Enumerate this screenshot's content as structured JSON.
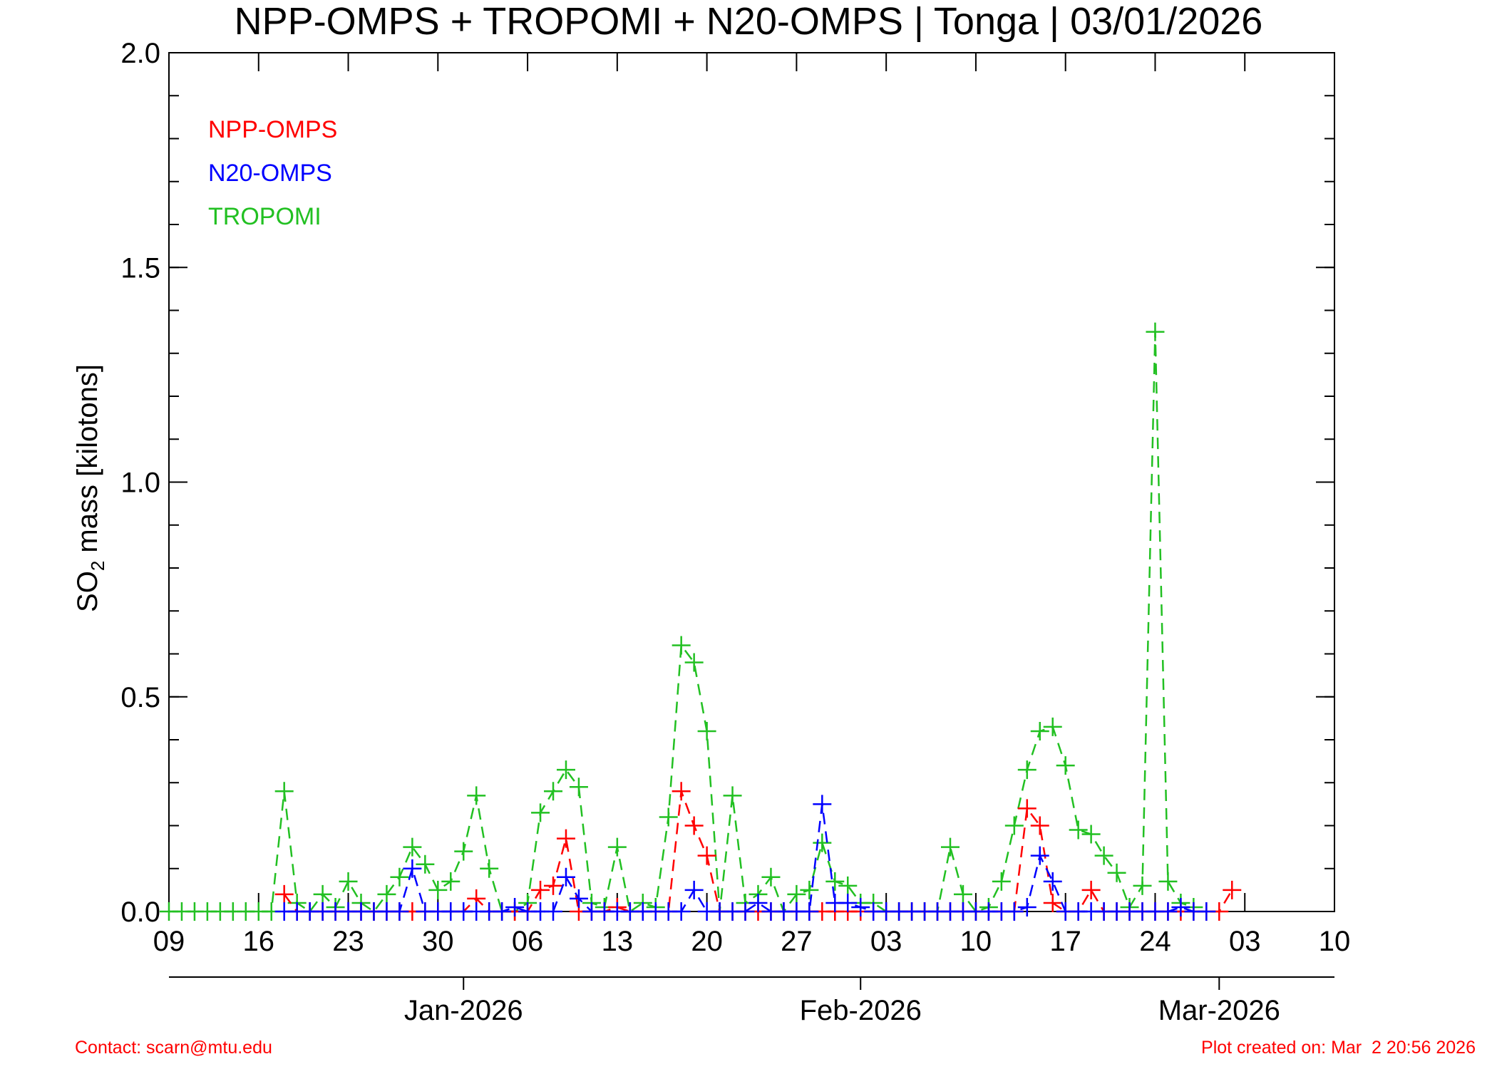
{
  "title": "NPP-OMPS + TROPOMI + N20-OMPS | Tonga | 03/01/2026",
  "footer": {
    "contact": "Contact: scarn@mtu.edu",
    "created": "Plot created on: Mar  2 20:56 2026"
  },
  "colors": {
    "npp": "#ff0000",
    "n20": "#0000ff",
    "tropomi": "#22c022",
    "axis": "#000000",
    "footer": "#ff0000"
  },
  "chart_data": {
    "type": "line",
    "title": "NPP-OMPS + TROPOMI + N20-OMPS | Tonga | 03/01/2026",
    "ylabel_main": "SO",
    "ylabel_sub": "2",
    "ylabel_rest": " mass [kilotons]",
    "ylim": [
      0,
      2.0
    ],
    "xlim": [
      "2025-12-09",
      "2026-03-10"
    ],
    "y_ticks": [
      "0.0",
      "0.5",
      "1.0",
      "1.5",
      "2.0"
    ],
    "y_tick_values": [
      0,
      0.5,
      1.0,
      1.5,
      2.0
    ],
    "y_minor_step": 0.1,
    "x_ticks": [
      {
        "date": "2025-12-09",
        "label": "09"
      },
      {
        "date": "2025-12-16",
        "label": "16"
      },
      {
        "date": "2025-12-23",
        "label": "23"
      },
      {
        "date": "2025-12-30",
        "label": "30"
      },
      {
        "date": "2026-01-06",
        "label": "06"
      },
      {
        "date": "2026-01-13",
        "label": "13"
      },
      {
        "date": "2026-01-20",
        "label": "20"
      },
      {
        "date": "2026-01-27",
        "label": "27"
      },
      {
        "date": "2026-02-03",
        "label": "03"
      },
      {
        "date": "2026-02-10",
        "label": "10"
      },
      {
        "date": "2026-02-17",
        "label": "17"
      },
      {
        "date": "2026-02-24",
        "label": "24"
      },
      {
        "date": "2026-03-03",
        "label": "03"
      },
      {
        "date": "2026-03-10",
        "label": "10"
      }
    ],
    "month_ticks": [
      {
        "date": "2026-01-01",
        "label": "Jan-2026"
      },
      {
        "date": "2026-02-01",
        "label": "Feb-2026"
      },
      {
        "date": "2026-03-01",
        "label": "Mar-2026"
      }
    ],
    "legend": {
      "position": "top-left",
      "entries": [
        "NPP-OMPS",
        "N20-OMPS",
        "TROPOMI"
      ]
    },
    "series": [
      {
        "name": "NPP-OMPS",
        "color": "#ff0000",
        "points": [
          [
            "2025-12-18",
            0.04
          ],
          [
            "2025-12-19",
            0.0
          ],
          [
            "2025-12-20",
            0.0
          ],
          [
            "2025-12-21",
            0.0
          ],
          [
            "2025-12-22",
            0.0
          ],
          [
            "2025-12-23",
            0.0
          ],
          [
            "2025-12-24",
            0.0
          ],
          [
            "2025-12-25",
            0.0
          ],
          [
            "2025-12-26",
            0.0
          ],
          [
            "2025-12-27",
            0.0
          ],
          [
            "2025-12-28",
            0.0
          ],
          [
            "2025-12-29",
            0.0
          ],
          [
            "2025-12-30",
            0.0
          ],
          [
            "2025-12-31",
            0.0
          ],
          [
            "2026-01-01",
            0.0
          ],
          [
            "2026-01-02",
            0.03
          ],
          [
            "2026-01-03",
            0.0
          ],
          [
            "2026-01-04",
            0.0
          ],
          [
            "2026-01-05",
            0.0
          ],
          [
            "2026-01-06",
            0.0
          ],
          [
            "2026-01-07",
            0.05
          ],
          [
            "2026-01-08",
            0.06
          ],
          [
            "2026-01-09",
            0.17
          ],
          [
            "2026-01-10",
            0.0
          ],
          [
            "2026-01-11",
            0.0
          ],
          [
            "2026-01-12",
            0.0
          ],
          [
            "2026-01-13",
            0.01
          ],
          [
            "2026-01-14",
            0.0
          ],
          [
            "2026-01-15",
            0.0
          ],
          [
            "2026-01-16",
            0.0
          ],
          [
            "2026-01-17",
            0.0
          ],
          [
            "2026-01-18",
            0.28
          ],
          [
            "2026-01-19",
            0.2
          ],
          [
            "2026-01-20",
            0.13
          ],
          [
            "2026-01-21",
            0.0
          ],
          [
            "2026-01-22",
            0.0
          ],
          [
            "2026-01-23",
            0.0
          ],
          [
            "2026-01-24",
            0.0
          ],
          [
            "2026-01-25",
            0.0
          ],
          [
            "2026-01-26",
            0.0
          ],
          [
            "2026-01-27",
            0.0
          ],
          [
            "2026-01-28",
            0.0
          ],
          [
            "2026-01-29",
            0.0
          ],
          [
            "2026-01-30",
            0.0
          ],
          [
            "2026-01-31",
            0.0
          ],
          [
            "2026-02-01",
            0.0
          ],
          [
            "2026-02-02",
            0.0
          ],
          [
            "2026-02-03",
            0.0
          ],
          [
            "2026-02-04",
            0.0
          ],
          [
            "2026-02-05",
            0.0
          ],
          [
            "2026-02-06",
            0.0
          ],
          [
            "2026-02-07",
            0.0
          ],
          [
            "2026-02-08",
            0.0
          ],
          [
            "2026-02-09",
            0.0
          ],
          [
            "2026-02-10",
            0.0
          ],
          [
            "2026-02-11",
            0.0
          ],
          [
            "2026-02-12",
            0.0
          ],
          [
            "2026-02-13",
            0.0
          ],
          [
            "2026-02-14",
            0.24
          ],
          [
            "2026-02-15",
            0.2
          ],
          [
            "2026-02-16",
            0.02
          ],
          [
            "2026-02-17",
            0.0
          ],
          [
            "2026-02-18",
            0.0
          ],
          [
            "2026-02-19",
            0.05
          ],
          [
            "2026-02-20",
            0.0
          ],
          [
            "2026-02-21",
            0.0
          ],
          [
            "2026-02-22",
            0.0
          ],
          [
            "2026-02-23",
            0.0
          ],
          [
            "2026-02-24",
            0.0
          ],
          [
            "2026-02-25",
            0.0
          ],
          [
            "2026-02-26",
            0.0
          ],
          [
            "2026-02-27",
            0.0
          ],
          [
            "2026-02-28",
            0.0
          ],
          [
            "2026-03-01",
            0.0
          ],
          [
            "2026-03-02",
            0.05
          ]
        ]
      },
      {
        "name": "N20-OMPS",
        "color": "#0000ff",
        "points": [
          [
            "2025-12-18",
            0.0
          ],
          [
            "2025-12-19",
            0.0
          ],
          [
            "2025-12-20",
            0.0
          ],
          [
            "2025-12-21",
            0.0
          ],
          [
            "2025-12-22",
            0.0
          ],
          [
            "2025-12-23",
            0.0
          ],
          [
            "2025-12-24",
            0.0
          ],
          [
            "2025-12-25",
            0.0
          ],
          [
            "2025-12-26",
            0.0
          ],
          [
            "2025-12-27",
            0.0
          ],
          [
            "2025-12-28",
            0.1
          ],
          [
            "2025-12-29",
            0.0
          ],
          [
            "2025-12-30",
            0.0
          ],
          [
            "2025-12-31",
            0.0
          ],
          [
            "2026-01-01",
            0.0
          ],
          [
            "2026-01-02",
            0.0
          ],
          [
            "2026-01-03",
            0.0
          ],
          [
            "2026-01-04",
            0.0
          ],
          [
            "2026-01-05",
            0.01
          ],
          [
            "2026-01-06",
            0.0
          ],
          [
            "2026-01-07",
            0.0
          ],
          [
            "2026-01-08",
            0.0
          ],
          [
            "2026-01-09",
            0.08
          ],
          [
            "2026-01-10",
            0.03
          ],
          [
            "2026-01-11",
            0.0
          ],
          [
            "2026-01-12",
            0.0
          ],
          [
            "2026-01-13",
            0.0
          ],
          [
            "2026-01-14",
            0.0
          ],
          [
            "2026-01-15",
            0.0
          ],
          [
            "2026-01-16",
            0.0
          ],
          [
            "2026-01-17",
            0.0
          ],
          [
            "2026-01-18",
            0.0
          ],
          [
            "2026-01-19",
            0.05
          ],
          [
            "2026-01-20",
            0.0
          ],
          [
            "2026-01-21",
            0.0
          ],
          [
            "2026-01-22",
            0.0
          ],
          [
            "2026-01-23",
            0.0
          ],
          [
            "2026-01-24",
            0.02
          ],
          [
            "2026-01-25",
            0.0
          ],
          [
            "2026-01-26",
            0.0
          ],
          [
            "2026-01-27",
            0.0
          ],
          [
            "2026-01-28",
            0.0
          ],
          [
            "2026-01-29",
            0.25
          ],
          [
            "2026-01-30",
            0.02
          ],
          [
            "2026-01-31",
            0.02
          ],
          [
            "2026-02-01",
            0.01
          ],
          [
            "2026-02-02",
            0.0
          ],
          [
            "2026-02-03",
            0.0
          ],
          [
            "2026-02-04",
            0.0
          ],
          [
            "2026-02-05",
            0.0
          ],
          [
            "2026-02-06",
            0.0
          ],
          [
            "2026-02-07",
            0.0
          ],
          [
            "2026-02-08",
            0.0
          ],
          [
            "2026-02-09",
            0.0
          ],
          [
            "2026-02-10",
            0.0
          ],
          [
            "2026-02-11",
            0.0
          ],
          [
            "2026-02-12",
            0.0
          ],
          [
            "2026-02-13",
            0.0
          ],
          [
            "2026-02-14",
            0.01
          ],
          [
            "2026-02-15",
            0.13
          ],
          [
            "2026-02-16",
            0.07
          ],
          [
            "2026-02-17",
            0.0
          ],
          [
            "2026-02-18",
            0.0
          ],
          [
            "2026-02-19",
            0.0
          ],
          [
            "2026-02-20",
            0.0
          ],
          [
            "2026-02-21",
            0.0
          ],
          [
            "2026-02-22",
            0.0
          ],
          [
            "2026-02-23",
            0.0
          ],
          [
            "2026-02-24",
            0.0
          ],
          [
            "2026-02-25",
            0.0
          ],
          [
            "2026-02-26",
            0.01
          ],
          [
            "2026-02-27",
            0.0
          ],
          [
            "2026-02-28",
            0.0
          ]
        ]
      },
      {
        "name": "TROPOMI",
        "color": "#22c022",
        "points": [
          [
            "2025-12-09",
            0.0
          ],
          [
            "2025-12-10",
            0.0
          ],
          [
            "2025-12-11",
            0.0
          ],
          [
            "2025-12-12",
            0.0
          ],
          [
            "2025-12-13",
            0.0
          ],
          [
            "2025-12-14",
            0.0
          ],
          [
            "2025-12-15",
            0.0
          ],
          [
            "2025-12-16",
            0.0
          ],
          [
            "2025-12-17",
            0.0
          ],
          [
            "2025-12-18",
            0.28
          ],
          [
            "2025-12-19",
            0.02
          ],
          [
            "2025-12-20",
            0.0
          ],
          [
            "2025-12-21",
            0.04
          ],
          [
            "2025-12-22",
            0.01
          ],
          [
            "2025-12-23",
            0.07
          ],
          [
            "2025-12-24",
            0.02
          ],
          [
            "2025-12-25",
            0.0
          ],
          [
            "2025-12-26",
            0.04
          ],
          [
            "2025-12-27",
            0.08
          ],
          [
            "2025-12-28",
            0.15
          ],
          [
            "2025-12-29",
            0.11
          ],
          [
            "2025-12-30",
            0.05
          ],
          [
            "2025-12-31",
            0.07
          ],
          [
            "2026-01-01",
            0.14
          ],
          [
            "2026-01-02",
            0.27
          ],
          [
            "2026-01-03",
            0.1
          ],
          [
            "2026-01-04",
            0.0
          ],
          [
            "2026-01-05",
            0.0
          ],
          [
            "2026-01-06",
            0.02
          ],
          [
            "2026-01-07",
            0.23
          ],
          [
            "2026-01-08",
            0.28
          ],
          [
            "2026-01-09",
            0.33
          ],
          [
            "2026-01-10",
            0.29
          ],
          [
            "2026-01-11",
            0.02
          ],
          [
            "2026-01-12",
            0.01
          ],
          [
            "2026-01-13",
            0.15
          ],
          [
            "2026-01-14",
            0.0
          ],
          [
            "2026-01-15",
            0.02
          ],
          [
            "2026-01-16",
            0.01
          ],
          [
            "2026-01-17",
            0.22
          ],
          [
            "2026-01-18",
            0.62
          ],
          [
            "2026-01-19",
            0.58
          ],
          [
            "2026-01-20",
            0.42
          ],
          [
            "2026-01-21",
            0.0
          ],
          [
            "2026-01-22",
            0.27
          ],
          [
            "2026-01-23",
            0.02
          ],
          [
            "2026-01-24",
            0.04
          ],
          [
            "2026-01-25",
            0.08
          ],
          [
            "2026-01-26",
            0.0
          ],
          [
            "2026-01-27",
            0.04
          ],
          [
            "2026-01-28",
            0.05
          ],
          [
            "2026-01-29",
            0.16
          ],
          [
            "2026-01-30",
            0.07
          ],
          [
            "2026-01-31",
            0.06
          ],
          [
            "2026-02-01",
            0.02
          ],
          [
            "2026-02-02",
            0.02
          ],
          [
            "2026-02-03",
            0.0
          ],
          [
            "2026-02-04",
            0.0
          ],
          [
            "2026-02-05",
            0.0
          ],
          [
            "2026-02-06",
            0.0
          ],
          [
            "2026-02-07",
            0.0
          ],
          [
            "2026-02-08",
            0.15
          ],
          [
            "2026-02-09",
            0.04
          ],
          [
            "2026-02-10",
            0.0
          ],
          [
            "2026-02-11",
            0.01
          ],
          [
            "2026-02-12",
            0.07
          ],
          [
            "2026-02-13",
            0.2
          ],
          [
            "2026-02-14",
            0.33
          ],
          [
            "2026-02-15",
            0.42
          ],
          [
            "2026-02-16",
            0.43
          ],
          [
            "2026-02-17",
            0.34
          ],
          [
            "2026-02-18",
            0.19
          ],
          [
            "2026-02-19",
            0.18
          ],
          [
            "2026-02-20",
            0.13
          ],
          [
            "2026-02-21",
            0.09
          ],
          [
            "2026-02-22",
            0.01
          ],
          [
            "2026-02-23",
            0.06
          ],
          [
            "2026-02-24",
            1.35
          ],
          [
            "2026-02-25",
            0.07
          ],
          [
            "2026-02-26",
            0.02
          ],
          [
            "2026-02-27",
            0.01
          ]
        ]
      }
    ]
  }
}
